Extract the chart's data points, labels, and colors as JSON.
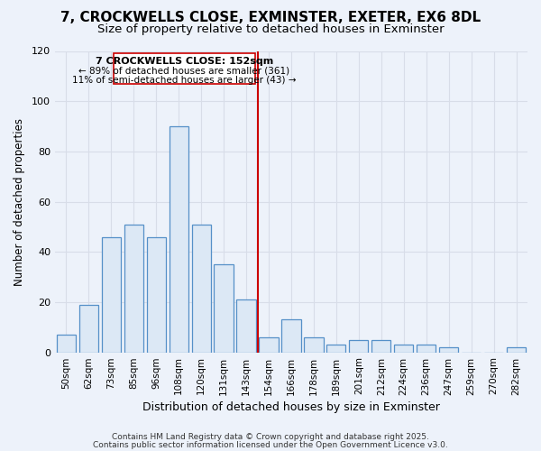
{
  "title_line1": "7, CROCKWELLS CLOSE, EXMINSTER, EXETER, EX6 8DL",
  "title_line2": "Size of property relative to detached houses in Exminster",
  "xlabel": "Distribution of detached houses by size in Exminster",
  "ylabel": "Number of detached properties",
  "annotation_title": "7 CROCKWELLS CLOSE: 152sqm",
  "annotation_line2": "← 89% of detached houses are smaller (361)",
  "annotation_line3": "11% of semi-detached houses are larger (43) →",
  "categories": [
    "50sqm",
    "62sqm",
    "73sqm",
    "85sqm",
    "96sqm",
    "108sqm",
    "120sqm",
    "131sqm",
    "143sqm",
    "154sqm",
    "166sqm",
    "178sqm",
    "189sqm",
    "201sqm",
    "212sqm",
    "224sqm",
    "236sqm",
    "247sqm",
    "259sqm",
    "270sqm",
    "282sqm"
  ],
  "values": [
    7,
    19,
    46,
    51,
    46,
    90,
    51,
    35,
    21,
    6,
    13,
    6,
    3,
    5,
    5,
    3,
    3,
    2,
    0,
    0,
    2
  ],
  "bar_color": "#dce8f5",
  "bar_edge_color": "#5590c8",
  "vertical_line_color": "#cc0000",
  "vertical_line_index": 9,
  "annotation_box_edge": "#cc0000",
  "annotation_box_face": "#ffffff",
  "background_color": "#edf2fa",
  "grid_color": "#d8dde8",
  "ylim": [
    0,
    120
  ],
  "yticks": [
    0,
    20,
    40,
    60,
    80,
    100,
    120
  ],
  "title_fontsize": 11,
  "subtitle_fontsize": 9.5,
  "footer_line1": "Contains HM Land Registry data © Crown copyright and database right 2025.",
  "footer_line2": "Contains public sector information licensed under the Open Government Licence v3.0."
}
